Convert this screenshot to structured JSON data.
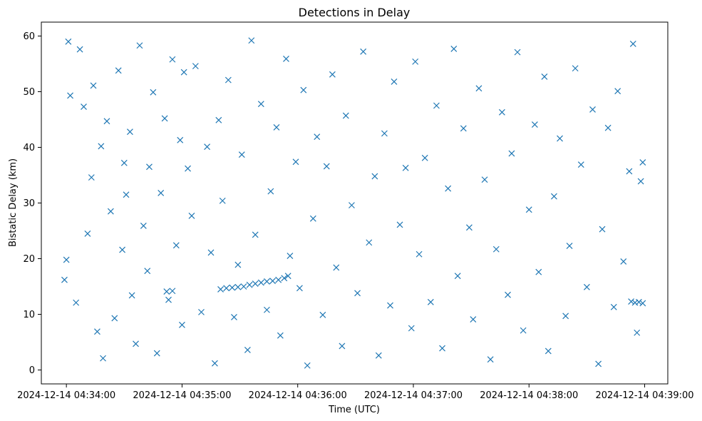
{
  "chart_data": {
    "type": "scatter",
    "title": "Detections in Delay",
    "xlabel": "Time (UTC)",
    "ylabel": "Bistatic Delay (km)",
    "marker": "x",
    "color": "#1f77b4",
    "grid": false,
    "legend": "none",
    "x_ticks": [
      "2024-12-14 04:34:00",
      "2024-12-14 04:35:00",
      "2024-12-14 04:36:00",
      "2024-12-14 04:37:00",
      "2024-12-14 04:38:00",
      "2024-12-14 04:39:00"
    ],
    "y_ticks": [
      0,
      10,
      20,
      30,
      40,
      50,
      60
    ],
    "xlim": [
      "2024-12-14 04:33:47",
      "2024-12-14 04:39:12"
    ],
    "ylim": [
      -2.5,
      62.5
    ],
    "series": [
      {
        "points": [
          [
            "2024-12-14 04:33:59",
            16.2
          ],
          [
            "2024-12-14 04:34:00",
            19.8
          ],
          [
            "2024-12-14 04:34:01",
            59.0
          ],
          [
            "2024-12-14 04:34:02",
            49.3
          ],
          [
            "2024-12-14 04:34:05",
            12.1
          ],
          [
            "2024-12-14 04:34:07",
            57.6
          ],
          [
            "2024-12-14 04:34:09",
            47.3
          ],
          [
            "2024-12-14 04:34:11",
            24.5
          ],
          [
            "2024-12-14 04:34:13",
            34.6
          ],
          [
            "2024-12-14 04:34:14",
            51.1
          ],
          [
            "2024-12-14 04:34:16",
            6.9
          ],
          [
            "2024-12-14 04:34:18",
            40.2
          ],
          [
            "2024-12-14 04:34:19",
            2.1
          ],
          [
            "2024-12-14 04:34:21",
            44.7
          ],
          [
            "2024-12-14 04:34:23",
            28.5
          ],
          [
            "2024-12-14 04:34:25",
            9.3
          ],
          [
            "2024-12-14 04:34:27",
            53.8
          ],
          [
            "2024-12-14 04:34:29",
            21.6
          ],
          [
            "2024-12-14 04:34:30",
            37.2
          ],
          [
            "2024-12-14 04:34:31",
            31.5
          ],
          [
            "2024-12-14 04:34:33",
            42.8
          ],
          [
            "2024-12-14 04:34:34",
            13.4
          ],
          [
            "2024-12-14 04:34:36",
            4.7
          ],
          [
            "2024-12-14 04:34:38",
            58.3
          ],
          [
            "2024-12-14 04:34:40",
            25.9
          ],
          [
            "2024-12-14 04:34:42",
            17.8
          ],
          [
            "2024-12-14 04:34:43",
            36.5
          ],
          [
            "2024-12-14 04:34:45",
            49.9
          ],
          [
            "2024-12-14 04:34:47",
            3.0
          ],
          [
            "2024-12-14 04:34:49",
            31.8
          ],
          [
            "2024-12-14 04:34:51",
            45.2
          ],
          [
            "2024-12-14 04:34:53",
            12.6
          ],
          [
            "2024-12-14 04:34:55",
            55.8
          ],
          [
            "2024-12-14 04:34:57",
            22.4
          ],
          [
            "2024-12-14 04:34:59",
            41.3
          ],
          [
            "2024-12-14 04:35:00",
            8.1
          ],
          [
            "2024-12-14 04:35:01",
            53.5
          ],
          [
            "2024-12-14 04:35:03",
            36.2
          ],
          [
            "2024-12-14 04:35:05",
            27.7
          ],
          [
            "2024-12-14 04:35:07",
            54.6
          ],
          [
            "2024-12-14 04:35:10",
            10.4
          ],
          [
            "2024-12-14 04:35:13",
            40.1
          ],
          [
            "2024-12-14 04:35:15",
            21.1
          ],
          [
            "2024-12-14 04:35:17",
            1.2
          ],
          [
            "2024-12-14 04:35:19",
            44.9
          ],
          [
            "2024-12-14 04:35:21",
            30.4
          ],
          [
            "2024-12-14 04:35:24",
            52.1
          ],
          [
            "2024-12-14 04:35:27",
            9.5
          ],
          [
            "2024-12-14 04:35:29",
            18.9
          ],
          [
            "2024-12-14 04:35:31",
            38.7
          ],
          [
            "2024-12-14 04:35:34",
            3.6
          ],
          [
            "2024-12-14 04:35:36",
            59.2
          ],
          [
            "2024-12-14 04:35:38",
            24.3
          ],
          [
            "2024-12-14 04:35:41",
            47.8
          ],
          [
            "2024-12-14 04:35:44",
            10.8
          ],
          [
            "2024-12-14 04:35:46",
            32.1
          ],
          [
            "2024-12-14 04:35:49",
            43.6
          ],
          [
            "2024-12-14 04:35:51",
            6.2
          ],
          [
            "2024-12-14 04:35:54",
            55.9
          ],
          [
            "2024-12-14 04:35:56",
            20.5
          ],
          [
            "2024-12-14 04:35:59",
            37.4
          ],
          [
            "2024-12-14 04:36:01",
            14.7
          ],
          [
            "2024-12-14 04:36:03",
            50.3
          ],
          [
            "2024-12-14 04:36:05",
            0.8
          ],
          [
            "2024-12-14 04:36:08",
            27.2
          ],
          [
            "2024-12-14 04:36:10",
            41.9
          ],
          [
            "2024-12-14 04:36:13",
            9.9
          ],
          [
            "2024-12-14 04:36:15",
            36.6
          ],
          [
            "2024-12-14 04:36:18",
            53.1
          ],
          [
            "2024-12-14 04:36:20",
            18.4
          ],
          [
            "2024-12-14 04:36:23",
            4.3
          ],
          [
            "2024-12-14 04:36:25",
            45.7
          ],
          [
            "2024-12-14 04:36:28",
            29.6
          ],
          [
            "2024-12-14 04:36:31",
            13.8
          ],
          [
            "2024-12-14 04:36:34",
            57.2
          ],
          [
            "2024-12-14 04:36:37",
            22.9
          ],
          [
            "2024-12-14 04:36:40",
            34.8
          ],
          [
            "2024-12-14 04:36:42",
            2.6
          ],
          [
            "2024-12-14 04:36:45",
            42.5
          ],
          [
            "2024-12-14 04:36:48",
            11.6
          ],
          [
            "2024-12-14 04:36:50",
            51.8
          ],
          [
            "2024-12-14 04:36:53",
            26.1
          ],
          [
            "2024-12-14 04:36:56",
            36.3
          ],
          [
            "2024-12-14 04:36:59",
            7.5
          ],
          [
            "2024-12-14 04:37:01",
            55.4
          ],
          [
            "2024-12-14 04:37:03",
            20.8
          ],
          [
            "2024-12-14 04:37:06",
            38.1
          ],
          [
            "2024-12-14 04:37:09",
            12.2
          ],
          [
            "2024-12-14 04:37:12",
            47.5
          ],
          [
            "2024-12-14 04:37:15",
            3.9
          ],
          [
            "2024-12-14 04:37:18",
            32.6
          ],
          [
            "2024-12-14 04:37:21",
            57.7
          ],
          [
            "2024-12-14 04:37:23",
            16.9
          ],
          [
            "2024-12-14 04:37:26",
            43.4
          ],
          [
            "2024-12-14 04:37:29",
            25.6
          ],
          [
            "2024-12-14 04:37:31",
            9.1
          ],
          [
            "2024-12-14 04:37:34",
            50.6
          ],
          [
            "2024-12-14 04:37:37",
            34.2
          ],
          [
            "2024-12-14 04:37:40",
            1.9
          ],
          [
            "2024-12-14 04:37:43",
            21.7
          ],
          [
            "2024-12-14 04:37:46",
            46.3
          ],
          [
            "2024-12-14 04:37:49",
            13.5
          ],
          [
            "2024-12-14 04:37:51",
            38.9
          ],
          [
            "2024-12-14 04:37:54",
            57.1
          ],
          [
            "2024-12-14 04:37:57",
            7.1
          ],
          [
            "2024-12-14 04:38:00",
            28.8
          ],
          [
            "2024-12-14 04:38:03",
            44.1
          ],
          [
            "2024-12-14 04:38:05",
            17.6
          ],
          [
            "2024-12-14 04:38:08",
            52.7
          ],
          [
            "2024-12-14 04:38:10",
            3.4
          ],
          [
            "2024-12-14 04:38:13",
            31.2
          ],
          [
            "2024-12-14 04:38:16",
            41.6
          ],
          [
            "2024-12-14 04:38:19",
            9.7
          ],
          [
            "2024-12-14 04:38:21",
            22.3
          ],
          [
            "2024-12-14 04:38:24",
            54.2
          ],
          [
            "2024-12-14 04:38:27",
            36.9
          ],
          [
            "2024-12-14 04:38:30",
            14.9
          ],
          [
            "2024-12-14 04:38:33",
            46.8
          ],
          [
            "2024-12-14 04:38:36",
            1.1
          ],
          [
            "2024-12-14 04:38:38",
            25.3
          ],
          [
            "2024-12-14 04:38:41",
            43.5
          ],
          [
            "2024-12-14 04:38:44",
            11.3
          ],
          [
            "2024-12-14 04:38:46",
            50.1
          ],
          [
            "2024-12-14 04:38:49",
            19.5
          ],
          [
            "2024-12-14 04:38:52",
            35.7
          ],
          [
            "2024-12-14 04:38:54",
            58.6
          ],
          [
            "2024-12-14 04:38:56",
            6.7
          ],
          [
            "2024-12-14 04:38:58",
            33.9
          ],
          [
            "2024-12-14 04:38:59",
            37.3
          ],
          [
            "2024-12-14 04:35:20",
            14.5
          ],
          [
            "2024-12-14 04:35:23",
            14.7
          ],
          [
            "2024-12-14 04:35:26",
            14.8
          ],
          [
            "2024-12-14 04:35:29",
            14.9
          ],
          [
            "2024-12-14 04:35:32",
            15.0
          ],
          [
            "2024-12-14 04:35:35",
            15.3
          ],
          [
            "2024-12-14 04:35:38",
            15.5
          ],
          [
            "2024-12-14 04:35:41",
            15.7
          ],
          [
            "2024-12-14 04:35:44",
            15.9
          ],
          [
            "2024-12-14 04:35:47",
            16.0
          ],
          [
            "2024-12-14 04:35:50",
            16.2
          ],
          [
            "2024-12-14 04:35:53",
            16.5
          ],
          [
            "2024-12-14 04:35:55",
            16.9
          ],
          [
            "2024-12-14 04:34:52",
            14.1
          ],
          [
            "2024-12-14 04:34:55",
            14.2
          ],
          [
            "2024-12-14 04:38:55",
            12.1
          ],
          [
            "2024-12-14 04:38:57",
            12.2
          ],
          [
            "2024-12-14 04:38:59",
            12.0
          ],
          [
            "2024-12-14 04:38:53",
            12.3
          ]
        ]
      }
    ]
  }
}
